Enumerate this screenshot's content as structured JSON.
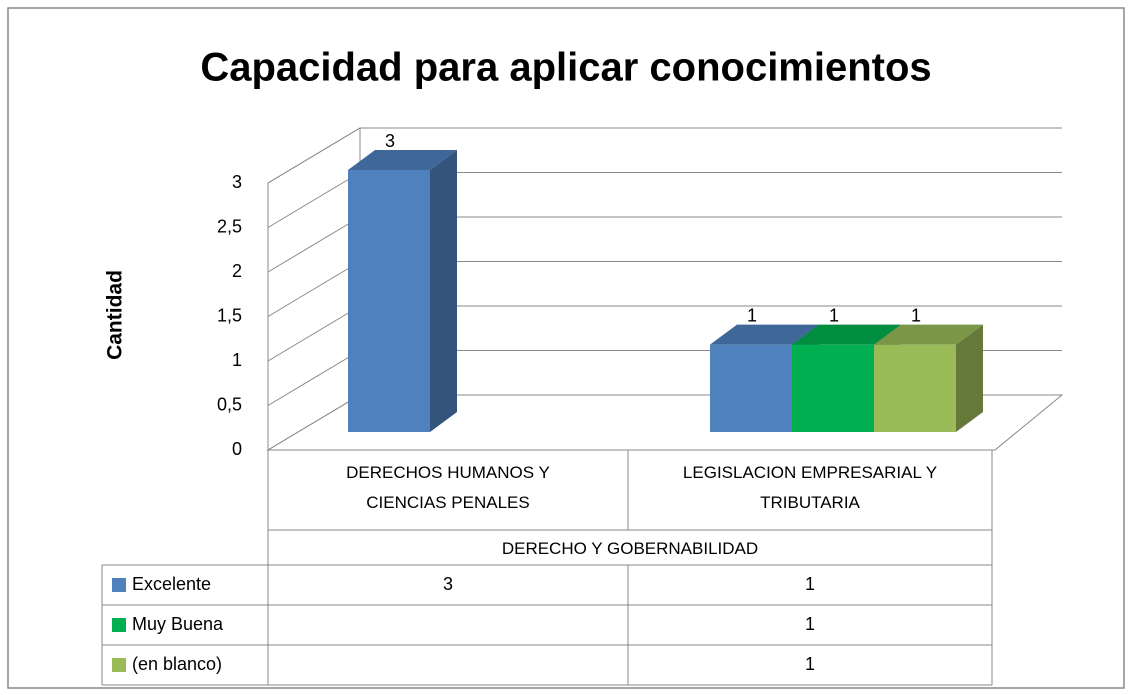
{
  "chart_data": {
    "type": "bar3d",
    "title": "Capacidad para aplicar conocimientos",
    "ylabel": "Cantidad",
    "group": "DERECHO Y GOBERNABILIDAD",
    "categories": [
      "DERECHOS HUMANOS Y CIENCIAS PENALES",
      "LEGISLACION EMPRESARIAL Y TRIBUTARIA"
    ],
    "series": [
      {
        "name": "Excelente",
        "color": "#4f81bd",
        "values": [
          3,
          1
        ]
      },
      {
        "name": "Muy Buena",
        "color": "#00b050",
        "values": [
          null,
          1
        ]
      },
      {
        "name": "(en blanco)",
        "color": "#9bbb59",
        "values": [
          null,
          1
        ]
      }
    ],
    "ylim": [
      0,
      3
    ],
    "yticks": [
      0,
      {
        "value": 0.5,
        "label": "0,5"
      },
      1,
      {
        "value": 1.5,
        "label": "1,5"
      },
      2,
      {
        "value": 2.5,
        "label": "2,5"
      },
      3
    ],
    "grid": true,
    "data_table": true
  }
}
